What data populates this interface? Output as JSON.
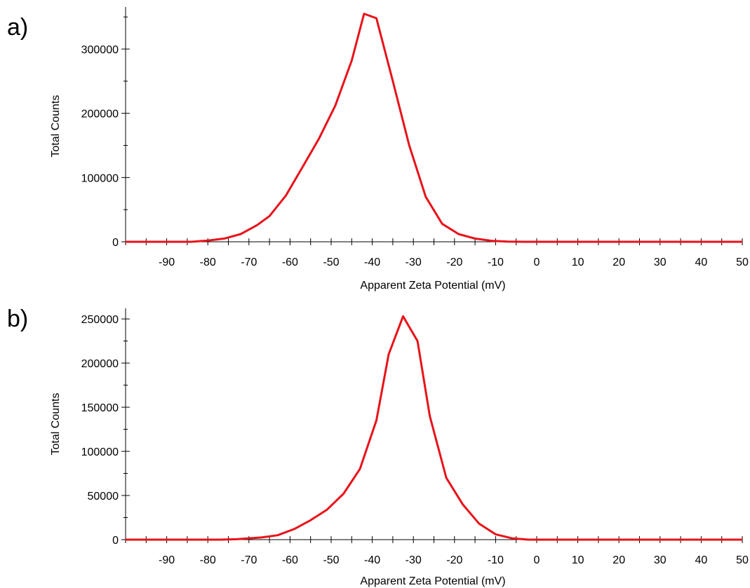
{
  "panels": [
    {
      "label": "a)"
    },
    {
      "label": "b)"
    }
  ],
  "chart_data": [
    {
      "type": "line",
      "title": "",
      "xlabel": "Apparent Zeta Potential (mV)",
      "ylabel": "Total Counts",
      "xlim": [
        -100,
        50
      ],
      "ylim": [
        0,
        360000
      ],
      "xticks": [
        -90,
        -80,
        -70,
        -60,
        -50,
        -40,
        -30,
        -20,
        -10,
        0,
        10,
        20,
        30,
        40,
        50
      ],
      "yticks": [
        0,
        100000,
        200000,
        300000
      ],
      "grid": false,
      "line_color": "#e8121a",
      "series": [
        {
          "x": [
            -100,
            -84,
            -80,
            -76,
            -72,
            -68,
            -65,
            -61,
            -57,
            -53,
            -49,
            -45,
            -42,
            -39,
            -35,
            -31,
            -27,
            -23,
            -19,
            -15,
            -11,
            -7,
            -3,
            0,
            10,
            20,
            30,
            40,
            50
          ],
          "y": [
            0,
            0,
            2000,
            5000,
            12000,
            26000,
            40000,
            72000,
            116000,
            160000,
            212000,
            282000,
            355000,
            348000,
            250000,
            150000,
            70000,
            28000,
            12000,
            5000,
            1500,
            300,
            0,
            0,
            0,
            0,
            0,
            0,
            0
          ]
        }
      ]
    },
    {
      "type": "line",
      "title": "",
      "xlabel": "Apparent Zeta Potential (mV)",
      "ylabel": "Total Counts",
      "xlim": [
        -100,
        50
      ],
      "ylim": [
        0,
        258000
      ],
      "xticks": [
        -90,
        -80,
        -70,
        -60,
        -50,
        -40,
        -30,
        -20,
        -10,
        0,
        10,
        20,
        30,
        40,
        50
      ],
      "yticks": [
        0,
        50000,
        100000,
        150000,
        200000,
        250000
      ],
      "grid": false,
      "line_color": "#e8121a",
      "series": [
        {
          "x": [
            -100,
            -77,
            -73,
            -70,
            -67,
            -63,
            -59,
            -55,
            -51,
            -47,
            -43,
            -39,
            -36,
            -32.5,
            -29,
            -26,
            -22,
            -18,
            -14,
            -10,
            -6,
            -2,
            0,
            10,
            20,
            30,
            40,
            50
          ],
          "y": [
            0,
            0,
            500,
            1500,
            2500,
            5000,
            12000,
            22000,
            34000,
            52000,
            80000,
            135000,
            210000,
            253000,
            225000,
            140000,
            70000,
            40000,
            18000,
            6000,
            1500,
            0,
            0,
            0,
            0,
            0,
            0,
            0
          ]
        }
      ]
    }
  ]
}
